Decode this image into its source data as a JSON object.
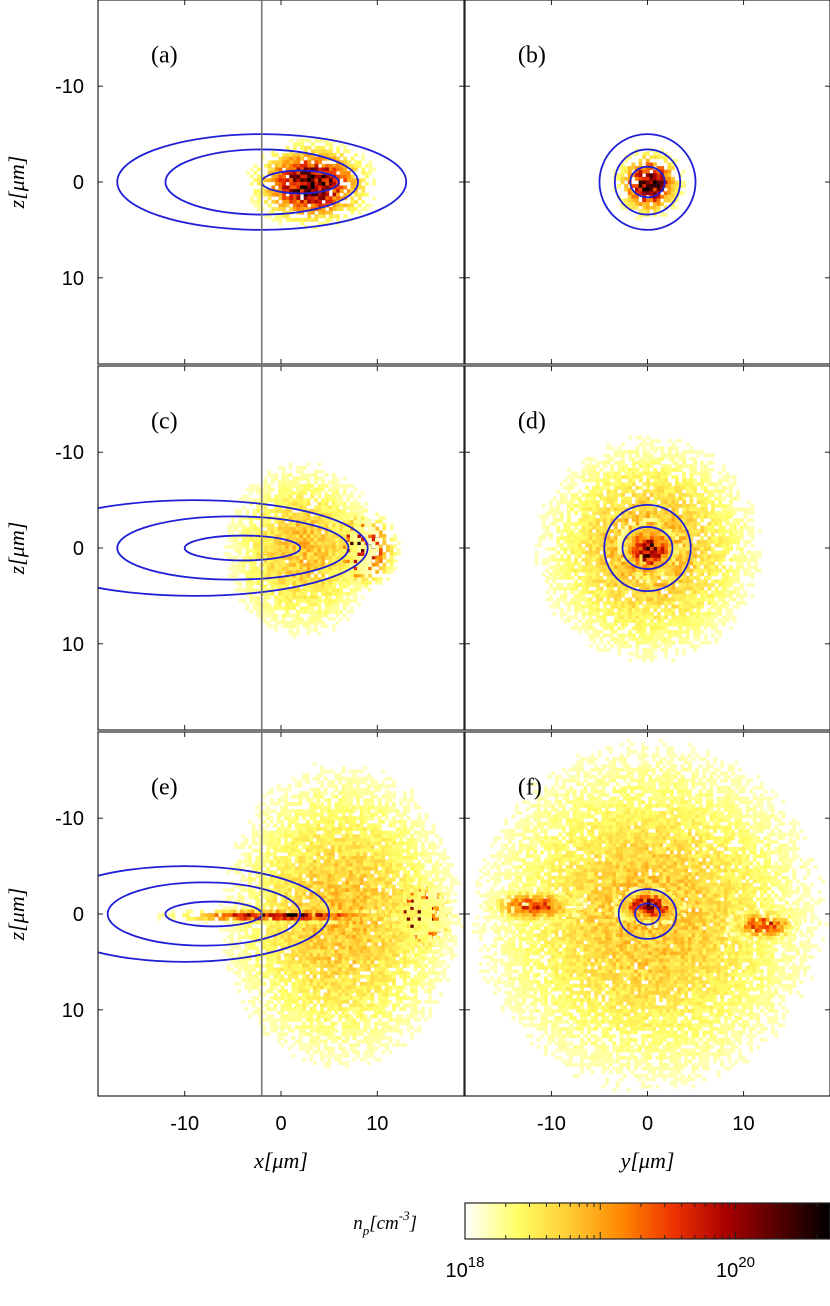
{
  "chart_data": {
    "type": "heatmap",
    "layout": "3 rows x 2 columns of density maps with blue contour overlays",
    "panels": [
      {
        "label": "(a)",
        "view": "x-z",
        "blobs": [
          {
            "cx": 3,
            "cz": 0,
            "rx": 5,
            "rz": 3.5,
            "peak": 1.0
          }
        ],
        "contours": [
          {
            "cx": -2,
            "cz": 0,
            "rx": 15,
            "rz": 5
          },
          {
            "cx": -2,
            "cz": 0,
            "rx": 10,
            "rz": 3.4
          },
          {
            "cx": 2,
            "cz": 0,
            "rx": 4,
            "rz": 1.2
          }
        ]
      },
      {
        "label": "(b)",
        "view": "y-z",
        "blobs": [
          {
            "cx": 0,
            "cz": 0,
            "rx": 2.8,
            "rz": 2.8,
            "peak": 1.0
          }
        ],
        "contours": [
          {
            "cx": 0,
            "cz": 0,
            "rx": 5,
            "rz": 5
          },
          {
            "cx": 0,
            "cz": 0,
            "rx": 3.4,
            "rz": 3.4
          },
          {
            "cx": 0,
            "cz": 0,
            "rx": 1.8,
            "rz": 1.6
          }
        ]
      },
      {
        "label": "(c)",
        "view": "x-z",
        "blobs": [
          {
            "cx": 8,
            "cz": 0,
            "rx": 3,
            "rz": 3.2,
            "peak": 1.0
          },
          {
            "cx": 2,
            "cz": 0,
            "rx": 7,
            "rz": 8,
            "peak": 0.35
          }
        ],
        "contours": [
          {
            "cx": -9,
            "cz": 0,
            "rx": 18,
            "rz": 5
          },
          {
            "cx": -5,
            "cz": 0,
            "rx": 12,
            "rz": 3.3
          },
          {
            "cx": -4,
            "cz": 0,
            "rx": 6,
            "rz": 1.3
          }
        ]
      },
      {
        "label": "(d)",
        "view": "y-z",
        "blobs": [
          {
            "cx": 0,
            "cz": 0,
            "rx": 10,
            "rz": 10,
            "peak": 0.4
          },
          {
            "cx": 0,
            "cz": 0,
            "rx": 2.5,
            "rz": 2.5,
            "peak": 0.9
          }
        ],
        "contours": [
          {
            "cx": 0,
            "cz": 0,
            "rx": 4.5,
            "rz": 4.5
          },
          {
            "cx": 0,
            "cz": 0,
            "rx": 2.6,
            "rz": 2.2
          }
        ]
      },
      {
        "label": "(e)",
        "view": "x-z",
        "blobs": [
          {
            "cx": 14,
            "cz": 0,
            "rx": 3,
            "rz": 3.2,
            "peak": 1.0
          },
          {
            "cx": 6,
            "cz": 0,
            "rx": 11,
            "rz": 14,
            "peak": 0.35
          },
          {
            "cx": 0,
            "cz": 0,
            "rx": 10,
            "rz": 0.6,
            "peak": 0.9
          }
        ],
        "contours": [
          {
            "cx": -10,
            "cz": 0,
            "rx": 15,
            "rz": 5
          },
          {
            "cx": -8,
            "cz": 0,
            "rx": 10,
            "rz": 3.3
          },
          {
            "cx": -7,
            "cz": 0,
            "rx": 5,
            "rz": 1.3
          }
        ]
      },
      {
        "label": "(f)",
        "view": "y-z",
        "blobs": [
          {
            "cx": 0,
            "cz": 0,
            "rx": 16,
            "rz": 16,
            "peak": 0.35
          },
          {
            "cx": -12,
            "cz": -1,
            "rx": 4,
            "rz": 1.5,
            "peak": 0.7
          },
          {
            "cx": 0,
            "cz": -1,
            "rx": 3,
            "rz": 1.5,
            "peak": 0.9
          },
          {
            "cx": 12,
            "cz": 1,
            "rx": 3,
            "rz": 1.5,
            "peak": 0.7
          }
        ],
        "contours": [
          {
            "cx": 0,
            "cz": 0,
            "rx": 3,
            "rz": 2.6
          },
          {
            "cx": 0,
            "cz": 0,
            "rx": 1.3,
            "rz": 1.1
          }
        ]
      }
    ],
    "x_ticks": [
      -10,
      0,
      10
    ],
    "y_ticks": [
      -10,
      0,
      10
    ],
    "z_ticks": [
      -10,
      0,
      10
    ],
    "z_range": [
      -19,
      19
    ],
    "x_range": [
      -19,
      19
    ],
    "y_range": [
      -19,
      19
    ],
    "z_axis_reversed": true,
    "vertical_marker_x": -2,
    "z_label": "z[μm]",
    "x_label": "x[μm]",
    "y_label": "y[μm]",
    "colorbar": {
      "label": "n_p[cm^-3]",
      "scale": "log",
      "range": [
        1e+18,
        5e+20
      ],
      "tick_base": "10",
      "ticks": [
        {
          "value": "18",
          "log": 18
        },
        {
          "value": "20",
          "log": 20
        }
      ],
      "colormap": [
        "#ffffff",
        "#ffff66",
        "#ffcc33",
        "#ff8800",
        "#ee3300",
        "#aa0000",
        "#550000",
        "#000000"
      ]
    },
    "contour_color": "#1f1fd6",
    "marker_color": "#777777"
  }
}
